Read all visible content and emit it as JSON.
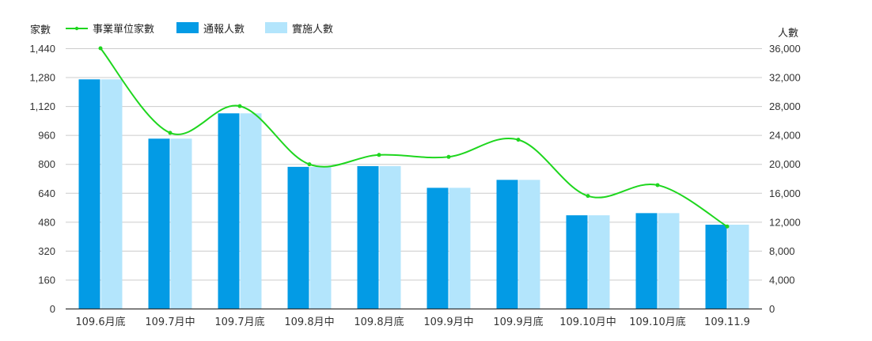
{
  "chart_data": {
    "type": "bar",
    "title": "",
    "categories": [
      "109.6月底",
      "109.7月中",
      "109.7月底",
      "109.8月中",
      "109.8月底",
      "109.9月中",
      "109.9月底",
      "109.10月中",
      "109.10月底",
      "109.11.9"
    ],
    "series": [
      {
        "name": "事業單位家數",
        "type": "line",
        "axis": "left",
        "color": "#1ed61e",
        "values": [
          1440,
          972,
          1120,
          798,
          850,
          839,
          934,
          623,
          683,
          454
        ]
      },
      {
        "name": "通報人數",
        "type": "bar",
        "axis": "right",
        "color": "#039be5",
        "values": [
          31700,
          23500,
          27000,
          19600,
          19700,
          16700,
          17800,
          12900,
          13200,
          11600
        ]
      },
      {
        "name": "實施人數",
        "type": "bar",
        "axis": "right",
        "color": "#b3e5fc",
        "values": [
          31700,
          23500,
          27000,
          19600,
          19700,
          16700,
          17800,
          12900,
          13200,
          11600
        ]
      }
    ],
    "ylabel": "家數",
    "ylabel_right": "人數",
    "ylim": [
      0,
      1440
    ],
    "ylim_right": [
      0,
      36000
    ],
    "yticks": [
      "0",
      "160",
      "320",
      "480",
      "640",
      "800",
      "960",
      "1,120",
      "1,280",
      "1,440"
    ],
    "yticks_right": [
      "0",
      "4,000",
      "8,000",
      "12,000",
      "16,000",
      "20,000",
      "24,000",
      "28,000",
      "32,000",
      "36,000"
    ],
    "grid": true,
    "legend_position": "top"
  },
  "legend": {
    "left_axis_title": "家數",
    "right_axis_title": "人數",
    "items": [
      "事業單位家數",
      "通報人數",
      "實施人數"
    ]
  }
}
